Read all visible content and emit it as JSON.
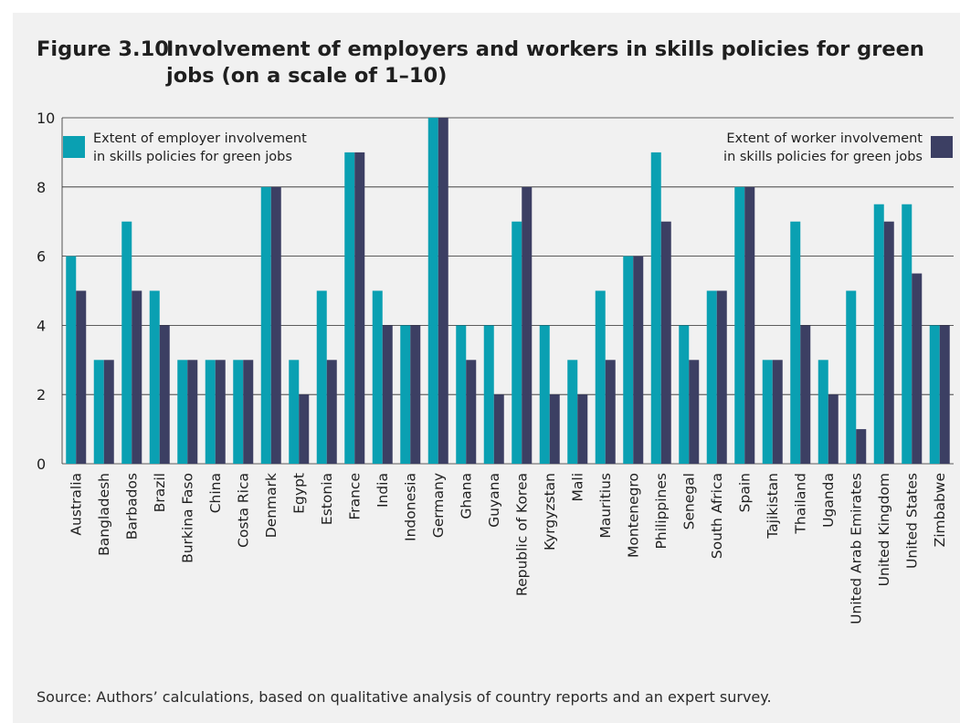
{
  "figure": {
    "number": "Figure 3.10",
    "title": "Involvement of employers and workers in skills policies for green jobs (on a scale of 1–10)",
    "source": "Source: Authors’ calculations, based on qualitative analysis of country reports and an expert survey."
  },
  "colors": {
    "employer": "#0aa0b2",
    "worker": "#3c3f63",
    "grid": "#2b2b2b",
    "text": "#1f1f1f"
  },
  "chart_data": {
    "type": "bar",
    "categories": [
      "Australia",
      "Bangladesh",
      "Barbados",
      "Brazil",
      "Burkina Faso",
      "China",
      "Costa Rica",
      "Denmark",
      "Egypt",
      "Estonia",
      "France",
      "India",
      "Indonesia",
      "Germany",
      "Ghana",
      "Guyana",
      "Republic of Korea",
      "Kyrgyzstan",
      "Mali",
      "Mauritius",
      "Montenegro",
      "Philippines",
      "Senegal",
      "South Africa",
      "Spain",
      "Tajikistan",
      "Thailand",
      "Uganda",
      "United Arab Emirates",
      "United Kingdom",
      "United States",
      "Zimbabwe"
    ],
    "series": [
      {
        "name": "Extent of employer involvement in skills policies for green jobs",
        "name_lines": [
          "Extent of employer involvement",
          "in skills policies for green jobs"
        ],
        "values": [
          6,
          3,
          7,
          5,
          3,
          3,
          3,
          8,
          3,
          5,
          9,
          5,
          4,
          10,
          4,
          4,
          7,
          4,
          3,
          5,
          6,
          9,
          4,
          5,
          8,
          3,
          7,
          3,
          5,
          7.5,
          7.5,
          4
        ]
      },
      {
        "name": "Extent of worker involvement in skills policies for green jobs",
        "name_lines": [
          "Extent of worker involvement",
          "in skills policies for green jobs"
        ],
        "values": [
          5,
          3,
          5,
          4,
          3,
          3,
          3,
          8,
          2,
          3,
          9,
          4,
          4,
          10,
          3,
          2,
          8,
          2,
          2,
          3,
          6,
          7,
          3,
          5,
          8,
          3,
          4,
          2,
          1,
          7,
          5.5,
          4
        ]
      }
    ],
    "ylim": [
      0,
      10
    ],
    "yticks": [
      0,
      2,
      4,
      6,
      8,
      10
    ],
    "grid": true,
    "legend": [
      "top-left",
      "top-right"
    ]
  }
}
